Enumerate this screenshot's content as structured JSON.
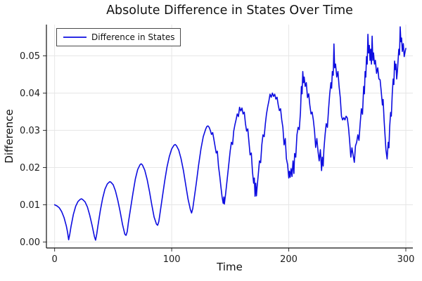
{
  "colors": {
    "line": "#0d0de0",
    "grid": "#e6e6e6",
    "spine": "#111111",
    "tick": "#333333",
    "legend_border": "#4a4a4a",
    "background": "#ffffff"
  },
  "chart_data": {
    "type": "line",
    "title": "Absolute Difference in States Over Time",
    "xlabel": "Time",
    "ylabel": "Difference",
    "xlim": [
      -7,
      306
    ],
    "ylim": [
      -0.0016,
      0.0584
    ],
    "xticks": [
      0,
      100,
      200,
      300
    ],
    "yticks": [
      0,
      0.01,
      0.02,
      0.03,
      0.04,
      0.05
    ],
    "ytick_labels": [
      "0.00",
      "0.01",
      "0.02",
      "0.03",
      "0.04",
      "0.05"
    ],
    "grid": true,
    "legend_position": "top-left",
    "series": [
      {
        "name": "Difference in States",
        "points": [
          [
            0,
            0.01
          ],
          [
            2,
            0.0097
          ],
          [
            4,
            0.0092
          ],
          [
            6,
            0.0082
          ],
          [
            8,
            0.0066
          ],
          [
            10,
            0.0043
          ],
          [
            11,
            0.0027
          ],
          [
            12,
            0.0006
          ],
          [
            13,
            0.0022
          ],
          [
            14,
            0.0042
          ],
          [
            16,
            0.0074
          ],
          [
            18,
            0.0096
          ],
          [
            20,
            0.0109
          ],
          [
            22,
            0.0115
          ],
          [
            23,
            0.0116
          ],
          [
            24,
            0.0114
          ],
          [
            26,
            0.0108
          ],
          [
            28,
            0.0094
          ],
          [
            30,
            0.0072
          ],
          [
            32,
            0.0045
          ],
          [
            34,
            0.0015
          ],
          [
            35,
            0.0005
          ],
          [
            36,
            0.0022
          ],
          [
            37,
            0.0043
          ],
          [
            39,
            0.0084
          ],
          [
            41,
            0.0117
          ],
          [
            43,
            0.0142
          ],
          [
            45,
            0.0156
          ],
          [
            47,
            0.0162
          ],
          [
            48,
            0.0161
          ],
          [
            50,
            0.0154
          ],
          [
            52,
            0.0137
          ],
          [
            54,
            0.0112
          ],
          [
            56,
            0.0081
          ],
          [
            58,
            0.0047
          ],
          [
            60,
            0.0021
          ],
          [
            61,
            0.0018
          ],
          [
            62,
            0.0028
          ],
          [
            63,
            0.0052
          ],
          [
            65,
            0.0092
          ],
          [
            67,
            0.0133
          ],
          [
            69,
            0.017
          ],
          [
            71,
            0.0195
          ],
          [
            73,
            0.0208
          ],
          [
            74,
            0.021
          ],
          [
            75,
            0.0207
          ],
          [
            77,
            0.0193
          ],
          [
            79,
            0.0168
          ],
          [
            81,
            0.0136
          ],
          [
            83,
            0.01
          ],
          [
            85,
            0.0067
          ],
          [
            87,
            0.0048
          ],
          [
            88,
            0.0045
          ],
          [
            89,
            0.0055
          ],
          [
            90,
            0.0077
          ],
          [
            92,
            0.012
          ],
          [
            94,
            0.0163
          ],
          [
            96,
            0.0201
          ],
          [
            98,
            0.023
          ],
          [
            100,
            0.025
          ],
          [
            102,
            0.026
          ],
          [
            103,
            0.0262
          ],
          [
            104,
            0.0259
          ],
          [
            106,
            0.0247
          ],
          [
            108,
            0.0224
          ],
          [
            110,
            0.0192
          ],
          [
            112,
            0.0153
          ],
          [
            114,
            0.0115
          ],
          [
            116,
            0.0087
          ],
          [
            117,
            0.0078
          ],
          [
            118,
            0.009
          ],
          [
            119,
            0.0112
          ],
          [
            121,
            0.0158
          ],
          [
            123,
            0.0207
          ],
          [
            125,
            0.025
          ],
          [
            127,
            0.0283
          ],
          [
            129,
            0.0303
          ],
          [
            130,
            0.031
          ],
          [
            131,
            0.0312
          ],
          [
            132,
            0.0308
          ],
          [
            133,
            0.03
          ],
          [
            134,
            0.0289
          ],
          [
            135,
            0.0294
          ],
          [
            136,
            0.0277
          ],
          [
            137,
            0.0258
          ],
          [
            138,
            0.0239
          ],
          [
            139,
            0.0244
          ],
          [
            140,
            0.0203
          ],
          [
            141,
            0.0178
          ],
          [
            142,
            0.015
          ],
          [
            143,
            0.0122
          ],
          [
            144,
            0.0104
          ],
          [
            144.6,
            0.0121
          ],
          [
            145,
            0.0102
          ],
          [
            146,
            0.0128
          ],
          [
            147,
            0.0156
          ],
          [
            148,
            0.0186
          ],
          [
            149,
            0.0216
          ],
          [
            150,
            0.0245
          ],
          [
            151,
            0.0268
          ],
          [
            152,
            0.0262
          ],
          [
            153,
            0.0298
          ],
          [
            154,
            0.0315
          ],
          [
            155,
            0.0329
          ],
          [
            156,
            0.0344
          ],
          [
            157,
            0.0337
          ],
          [
            158,
            0.0362
          ],
          [
            159,
            0.0352
          ],
          [
            160,
            0.036
          ],
          [
            161,
            0.0344
          ],
          [
            162,
            0.0349
          ],
          [
            163,
            0.0318
          ],
          [
            164,
            0.0298
          ],
          [
            165,
            0.0304
          ],
          [
            166,
            0.0268
          ],
          [
            167,
            0.0234
          ],
          [
            168,
            0.0239
          ],
          [
            169,
            0.0188
          ],
          [
            170,
            0.0158
          ],
          [
            170.6,
            0.0172
          ],
          [
            171.2,
            0.0123
          ],
          [
            171.8,
            0.0158
          ],
          [
            172.4,
            0.0124
          ],
          [
            173,
            0.0148
          ],
          [
            174,
            0.0183
          ],
          [
            175,
            0.0218
          ],
          [
            176,
            0.0213
          ],
          [
            177,
            0.0262
          ],
          [
            178,
            0.0288
          ],
          [
            179,
            0.0283
          ],
          [
            180,
            0.0318
          ],
          [
            181,
            0.0344
          ],
          [
            182,
            0.0363
          ],
          [
            183,
            0.0379
          ],
          [
            184,
            0.0397
          ],
          [
            185,
            0.0389
          ],
          [
            186,
            0.04
          ],
          [
            187,
            0.0391
          ],
          [
            188,
            0.0397
          ],
          [
            189,
            0.0384
          ],
          [
            190,
            0.0389
          ],
          [
            191,
            0.0368
          ],
          [
            192,
            0.0353
          ],
          [
            193,
            0.0358
          ],
          [
            194,
            0.0328
          ],
          [
            195,
            0.0308
          ],
          [
            196,
            0.0261
          ],
          [
            197,
            0.0278
          ],
          [
            198,
            0.0224
          ],
          [
            199,
            0.0208
          ],
          [
            200,
            0.0172
          ],
          [
            200.6,
            0.019
          ],
          [
            201.2,
            0.0174
          ],
          [
            202,
            0.0197
          ],
          [
            202.8,
            0.0176
          ],
          [
            203.6,
            0.0218
          ],
          [
            204.4,
            0.0184
          ],
          [
            205,
            0.0238
          ],
          [
            206,
            0.0228
          ],
          [
            207,
            0.0288
          ],
          [
            208,
            0.0308
          ],
          [
            209,
            0.0302
          ],
          [
            210,
            0.0348
          ],
          [
            210.8,
            0.0418
          ],
          [
            211.4,
            0.0398
          ],
          [
            212,
            0.0458
          ],
          [
            212.6,
            0.0428
          ],
          [
            213.2,
            0.0443
          ],
          [
            214,
            0.0418
          ],
          [
            215,
            0.0428
          ],
          [
            216,
            0.0388
          ],
          [
            217,
            0.0398
          ],
          [
            218,
            0.0368
          ],
          [
            219,
            0.0344
          ],
          [
            220,
            0.0349
          ],
          [
            221,
            0.0328
          ],
          [
            222,
            0.0298
          ],
          [
            223,
            0.0254
          ],
          [
            224,
            0.0278
          ],
          [
            225,
            0.0243
          ],
          [
            226,
            0.0218
          ],
          [
            227,
            0.0248
          ],
          [
            228,
            0.0192
          ],
          [
            228.6,
            0.0228
          ],
          [
            229.4,
            0.0204
          ],
          [
            230,
            0.0248
          ],
          [
            231,
            0.0288
          ],
          [
            232,
            0.0318
          ],
          [
            233,
            0.0308
          ],
          [
            234,
            0.0358
          ],
          [
            235,
            0.0398
          ],
          [
            236,
            0.0428
          ],
          [
            236.6,
            0.0413
          ],
          [
            237.2,
            0.0458
          ],
          [
            238,
            0.0448
          ],
          [
            238.6,
            0.0532
          ],
          [
            239.2,
            0.0468
          ],
          [
            240,
            0.0478
          ],
          [
            241,
            0.0443
          ],
          [
            242,
            0.0458
          ],
          [
            243,
            0.0418
          ],
          [
            244,
            0.0388
          ],
          [
            245,
            0.0338
          ],
          [
            246,
            0.0328
          ],
          [
            247,
            0.0334
          ],
          [
            248,
            0.0328
          ],
          [
            249,
            0.0338
          ],
          [
            250,
            0.0333
          ],
          [
            251,
            0.0308
          ],
          [
            252,
            0.0272
          ],
          [
            253,
            0.0228
          ],
          [
            254,
            0.0253
          ],
          [
            255,
            0.0233
          ],
          [
            256,
            0.0214
          ],
          [
            257,
            0.0258
          ],
          [
            258,
            0.0268
          ],
          [
            259,
            0.0288
          ],
          [
            260,
            0.0273
          ],
          [
            261,
            0.0318
          ],
          [
            262,
            0.0358
          ],
          [
            263,
            0.0343
          ],
          [
            264,
            0.0418
          ],
          [
            264.6,
            0.0398
          ],
          [
            265.2,
            0.0458
          ],
          [
            265.8,
            0.0443
          ],
          [
            266.4,
            0.0498
          ],
          [
            267,
            0.0478
          ],
          [
            267.6,
            0.0558
          ],
          [
            268.2,
            0.0508
          ],
          [
            268.8,
            0.0528
          ],
          [
            269.4,
            0.0488
          ],
          [
            270,
            0.0518
          ],
          [
            270.6,
            0.0478
          ],
          [
            271.2,
            0.0553
          ],
          [
            271.8,
            0.0488
          ],
          [
            272.4,
            0.0508
          ],
          [
            273.2,
            0.0478
          ],
          [
            274,
            0.0488
          ],
          [
            275,
            0.0453
          ],
          [
            276,
            0.0468
          ],
          [
            277,
            0.0438
          ],
          [
            278,
            0.0436
          ],
          [
            279,
            0.0403
          ],
          [
            280,
            0.0368
          ],
          [
            280.6,
            0.0383
          ],
          [
            281.4,
            0.0328
          ],
          [
            282.2,
            0.0288
          ],
          [
            283,
            0.0248
          ],
          [
            284,
            0.0223
          ],
          [
            285,
            0.0268
          ],
          [
            285.6,
            0.0253
          ],
          [
            286.2,
            0.0308
          ],
          [
            287,
            0.0348
          ],
          [
            287.6,
            0.0338
          ],
          [
            288.4,
            0.0398
          ],
          [
            289.2,
            0.0438
          ],
          [
            289.8,
            0.0423
          ],
          [
            290.4,
            0.0486
          ],
          [
            291,
            0.0463
          ],
          [
            291.6,
            0.0478
          ],
          [
            292.2,
            0.0438
          ],
          [
            292.8,
            0.0458
          ],
          [
            293.4,
            0.0488
          ],
          [
            294,
            0.0518
          ],
          [
            294.6,
            0.0503
          ],
          [
            295.2,
            0.0578
          ],
          [
            295.8,
            0.0538
          ],
          [
            296.4,
            0.0548
          ],
          [
            297,
            0.0512
          ],
          [
            297.8,
            0.0533
          ],
          [
            298.6,
            0.0498
          ],
          [
            299.4,
            0.0512
          ],
          [
            300,
            0.052
          ]
        ]
      }
    ]
  }
}
